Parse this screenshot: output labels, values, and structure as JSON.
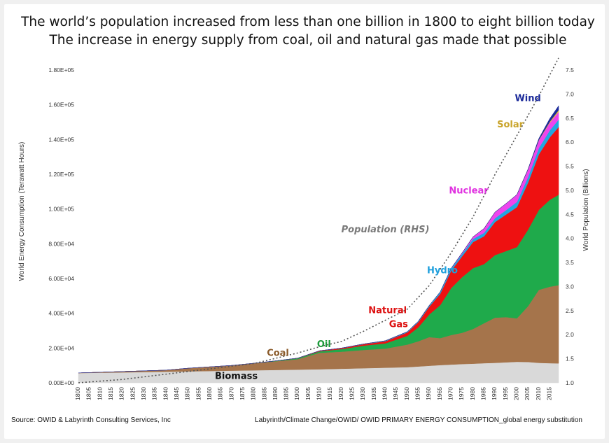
{
  "chart_data": {
    "type": "area",
    "title": [
      "The world’s population increased from less than one billion in 1800 to eight billion today",
      "The increase in energy supply from coal, oil and natural gas made that possible"
    ],
    "ylabel": "World Energy Consumption (Terawatt Hours)",
    "y2label": "World Population (Billions)",
    "ylim": [
      0,
      180000
    ],
    "y2lim": [
      1.0,
      7.5
    ],
    "yticks": [
      "0.00E+00",
      "2.00E+04",
      "4.00E+04",
      "6.00E+04",
      "8.00E+04",
      "1.00E+05",
      "1.20E+05",
      "1.40E+05",
      "1.60E+05",
      "1.80E+05"
    ],
    "y2ticks": [
      "1.0",
      "1.5",
      "2.0",
      "2.5",
      "3.0",
      "3.5",
      "4.0",
      "4.5",
      "5.0",
      "5.5",
      "6.0",
      "6.5",
      "7.0",
      "7.5"
    ],
    "xticks": [
      "1800",
      "1805",
      "1810",
      "1815",
      "1820",
      "1825",
      "1830",
      "1835",
      "1840",
      "1845",
      "1850",
      "1855",
      "1860",
      "1865",
      "1870",
      "1875",
      "1880",
      "1885",
      "1890",
      "1895",
      "1900",
      "1905",
      "1910",
      "1915",
      "1920",
      "1925",
      "1930",
      "1935",
      "1940",
      "1945",
      "1950",
      "1955",
      "1960",
      "1965",
      "1970",
      "1975",
      "1980",
      "1985",
      "1990",
      "1995",
      "2000",
      "2005",
      "2010",
      "2015"
    ],
    "x": [
      1800,
      1810,
      1820,
      1830,
      1840,
      1850,
      1860,
      1870,
      1880,
      1890,
      1900,
      1910,
      1920,
      1930,
      1940,
      1950,
      1955,
      1960,
      1965,
      1970,
      1975,
      1980,
      1985,
      1990,
      1995,
      2000,
      2005,
      2010,
      2015,
      2019
    ],
    "series": [
      {
        "name": "Biomass",
        "color": "#d9d9d9",
        "values": [
          5600,
          5800,
          6000,
          6200,
          6400,
          6600,
          6800,
          7000,
          7200,
          7400,
          7600,
          7800,
          8100,
          8400,
          8700,
          9000,
          9400,
          9800,
          10200,
          10500,
          10800,
          11000,
          11300,
          11500,
          11800,
          12100,
          12000,
          11500,
          11300,
          11200
        ]
      },
      {
        "name": "Coal",
        "color": "#a5744b",
        "values": [
          97,
          300,
          500,
          700,
          900,
          1800,
          2400,
          3000,
          4000,
          5000,
          6000,
          9500,
          9800,
          10500,
          11000,
          13000,
          14500,
          16500,
          15500,
          17000,
          18000,
          20000,
          23000,
          26000,
          26000,
          25000,
          32000,
          42000,
          44000,
          45000
        ]
      },
      {
        "name": "Oil",
        "color": "#1faa4b",
        "values": [
          0,
          0,
          0,
          0,
          0,
          0,
          0,
          0,
          50,
          200,
          500,
          800,
          1500,
          2500,
          3000,
          5000,
          8000,
          13000,
          19000,
          27000,
          32000,
          35000,
          34000,
          36000,
          38000,
          41000,
          44000,
          46000,
          50000,
          52000
        ]
      },
      {
        "name": "Natural Gas",
        "color": "#ee1111",
        "values": [
          0,
          0,
          0,
          0,
          0,
          0,
          0,
          0,
          10,
          50,
          100,
          300,
          500,
          800,
          1200,
          2000,
          3000,
          4500,
          6500,
          10000,
          12000,
          15000,
          16000,
          19000,
          21000,
          23000,
          27000,
          32000,
          36000,
          39000
        ]
      },
      {
        "name": "Hydro",
        "color": "#22a7e0",
        "values": [
          0,
          0,
          0,
          0,
          0,
          0,
          0,
          0,
          0,
          0,
          10,
          50,
          100,
          150,
          300,
          400,
          500,
          700,
          1000,
          1200,
          1500,
          1800,
          2000,
          2200,
          2500,
          3000,
          3200,
          3600,
          4000,
          4200
        ]
      },
      {
        "name": "Nuclear",
        "color": "#ee44ee",
        "values": [
          0,
          0,
          0,
          0,
          0,
          0,
          0,
          0,
          0,
          0,
          0,
          0,
          0,
          0,
          0,
          0,
          0,
          0,
          100,
          200,
          500,
          1200,
          2500,
          3500,
          3800,
          4200,
          4400,
          4500,
          4400,
          4500
        ]
      },
      {
        "name": "Solar",
        "color": "#e3c430",
        "values": [
          0,
          0,
          0,
          0,
          0,
          0,
          0,
          0,
          0,
          0,
          0,
          0,
          0,
          0,
          0,
          0,
          0,
          0,
          0,
          0,
          0,
          0,
          0,
          0,
          0,
          0,
          0,
          200,
          600,
          1000
        ]
      },
      {
        "name": "Wind",
        "color": "#1b2a9a",
        "values": [
          0,
          0,
          0,
          0,
          0,
          0,
          0,
          0,
          0,
          0,
          0,
          0,
          0,
          0,
          0,
          0,
          0,
          0,
          0,
          0,
          0,
          0,
          0,
          0,
          0,
          0,
          200,
          800,
          1800,
          2500
        ]
      }
    ],
    "population": {
      "name": "Population (RHS)",
      "x": [
        1800,
        1820,
        1840,
        1860,
        1880,
        1900,
        1910,
        1920,
        1930,
        1940,
        1950,
        1960,
        1970,
        1980,
        1990,
        2000,
        2010,
        2019
      ],
      "values": [
        1.0,
        1.07,
        1.18,
        1.29,
        1.4,
        1.62,
        1.75,
        1.86,
        2.07,
        2.3,
        2.53,
        3.02,
        3.7,
        4.45,
        5.33,
        6.14,
        6.96,
        7.75
      ]
    },
    "annotations": [
      {
        "text": "Biomass",
        "color": "#111111",
        "x": 1872,
        "y": 2200
      },
      {
        "text": "Coal",
        "color": "#8a5a2a",
        "x": 1891,
        "y": 15500
      },
      {
        "text": "Oil",
        "color": "#1b9a3a",
        "x": 1912,
        "y": 20500
      },
      {
        "text": "Natural",
        "color": "#dd1111",
        "x": 1941,
        "y": 40000
      },
      {
        "text": "Gas",
        "color": "#dd1111",
        "x": 1946,
        "y": 32000
      },
      {
        "text": "Hydro",
        "color": "#1fa0dd",
        "x": 1966,
        "y": 63000
      },
      {
        "text": "Population (RHS)",
        "color": "#7a7a7a",
        "x": 1940,
        "y": 86500
      },
      {
        "text": "Nuclear",
        "color": "#e032e0",
        "x": 1978,
        "y": 109000
      },
      {
        "text": "Solar",
        "color": "#c9a42a",
        "x": 1997,
        "y": 147000
      },
      {
        "text": "Wind",
        "color": "#1b2a9a",
        "x": 2005,
        "y": 162000
      }
    ],
    "footer_left": "Source:  OWID & Labyrinth Consulting Services, Inc",
    "footer_right": "Labyrinth/Climate Change/OWID/ OWID PRIMARY ENERGY CONSUMPTION_global energy substitution"
  }
}
